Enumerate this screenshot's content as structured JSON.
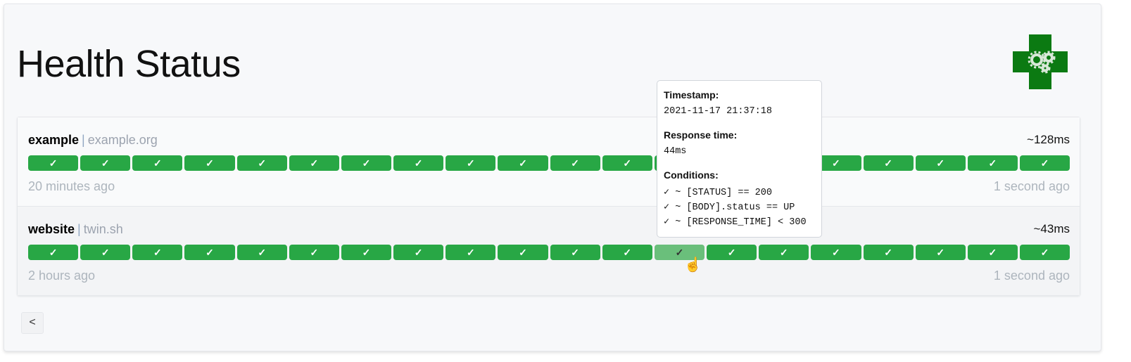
{
  "page": {
    "title": "Health Status",
    "logo": "health-gears-logo"
  },
  "colors": {
    "success": "#28a745",
    "hover": "#6abf7b"
  },
  "services": [
    {
      "name": "example",
      "host": "example.org",
      "avg_response": "~128ms",
      "oldest": "20 minutes ago",
      "newest": "1 second ago",
      "results": [
        "success",
        "success",
        "success",
        "success",
        "success",
        "success",
        "success",
        "success",
        "success",
        "success",
        "success",
        "success",
        "success",
        "success",
        "success",
        "success",
        "success",
        "success",
        "success",
        "success"
      ]
    },
    {
      "name": "website",
      "host": "twin.sh",
      "avg_response": "~43ms",
      "oldest": "2 hours ago",
      "newest": "1 second ago",
      "results": [
        "success",
        "success",
        "success",
        "success",
        "success",
        "success",
        "success",
        "success",
        "success",
        "success",
        "success",
        "success",
        "success",
        "success",
        "success",
        "success",
        "success",
        "success",
        "success",
        "success"
      ],
      "hovered_index": 12
    }
  ],
  "result_symbol": "✓",
  "tooltip": {
    "timestamp_label": "Timestamp:",
    "timestamp": "2021-11-17 21:37:18",
    "response_label": "Response time:",
    "response": "44ms",
    "conditions_label": "Conditions:",
    "conditions": [
      "✓ ~ [STATUS] == 200",
      "✓ ~ [BODY].status == UP",
      "✓ ~ [RESPONSE_TIME] < 300"
    ]
  },
  "pagination": {
    "prev_label": "<"
  }
}
